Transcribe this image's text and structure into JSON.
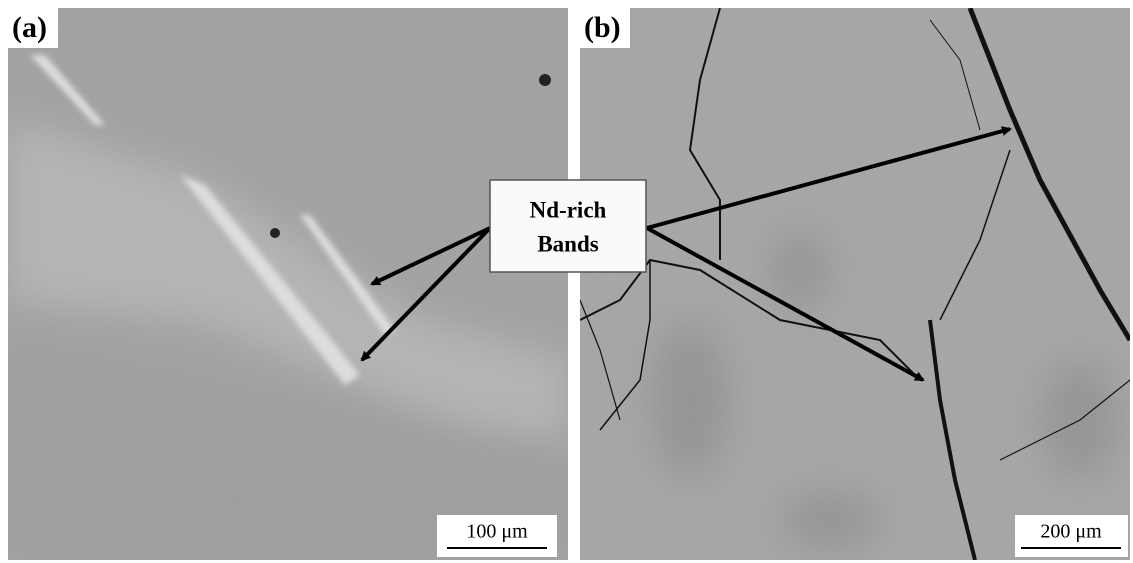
{
  "panels": [
    {
      "label": "(a)",
      "scale_bar": "100 μm"
    },
    {
      "label": "(b)",
      "scale_bar": "200 μm"
    }
  ],
  "callout": {
    "lines": [
      "Nd-rich",
      "Bands"
    ]
  }
}
